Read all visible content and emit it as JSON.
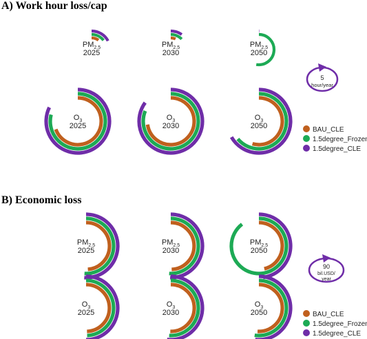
{
  "panels": {
    "a_title": "A) Work hour loss/cap",
    "b_title": "B) Economic loss"
  },
  "legend": {
    "bau": "BAU_CLE",
    "frozen": "1.5degree_Frozen",
    "cle": "1.5degree_CLE"
  },
  "colors": {
    "BAU_CLE": "#c0601e",
    "1.5degree_Frozen": "#1daa55",
    "1.5degree_CLE": "#6f2da8"
  },
  "scale_a": {
    "value": "5",
    "unit": "hour/year"
  },
  "scale_b": {
    "value": "90",
    "unit_line1": "bil.USD/",
    "unit_line2": "year"
  },
  "chart_data": [
    {
      "type": "radial-bar",
      "panel": "A) Work hour loss/cap",
      "unit": "hour/year",
      "scale_reference": 5,
      "series_names": [
        "BAU_CLE",
        "1.5degree_Frozen",
        "1.5degree_CLE"
      ],
      "groups": [
        {
          "pollutant": "PM",
          "sub": "2.5",
          "year": "2025",
          "values": [
            1.8,
            2.6,
            3.1
          ]
        },
        {
          "pollutant": "PM",
          "sub": "2.5",
          "year": "2030",
          "values": [
            1.2,
            2.3,
            1.8
          ]
        },
        {
          "pollutant": "PM",
          "sub": "2.5",
          "year": "2050",
          "values": [
            0.0,
            9.5,
            0.05
          ]
        },
        {
          "pollutant": "O",
          "sub": "3",
          "year": "2025",
          "values": [
            12.5,
            14.2,
            14.8
          ]
        },
        {
          "pollutant": "O",
          "sub": "3",
          "year": "2030",
          "values": [
            13.1,
            14.6,
            15.3
          ]
        },
        {
          "pollutant": "O",
          "sub": "3",
          "year": "2050",
          "values": [
            9.8,
            11.5,
            12.0
          ]
        }
      ]
    },
    {
      "type": "radial-bar",
      "panel": "B) Economic loss",
      "unit": "bil.USD/year",
      "scale_reference": 90,
      "series_names": [
        "BAU_CLE",
        "1.5degree_Frozen",
        "1.5degree_CLE"
      ],
      "groups": [
        {
          "pollutant": "PM",
          "sub": "2.5",
          "year": "2025",
          "values": [
            158,
            165,
            165
          ]
        },
        {
          "pollutant": "PM",
          "sub": "2.5",
          "year": "2030",
          "values": [
            160,
            165,
            163
          ]
        },
        {
          "pollutant": "PM",
          "sub": "2.5",
          "year": "2050",
          "values": [
            150,
            290,
            155
          ]
        },
        {
          "pollutant": "O",
          "sub": "3",
          "year": "2025",
          "values": [
            160,
            160,
            162
          ]
        },
        {
          "pollutant": "O",
          "sub": "3",
          "year": "2030",
          "values": [
            163,
            165,
            168
          ]
        },
        {
          "pollutant": "O",
          "sub": "3",
          "year": "2050",
          "values": [
            165,
            170,
            168
          ]
        }
      ]
    }
  ]
}
